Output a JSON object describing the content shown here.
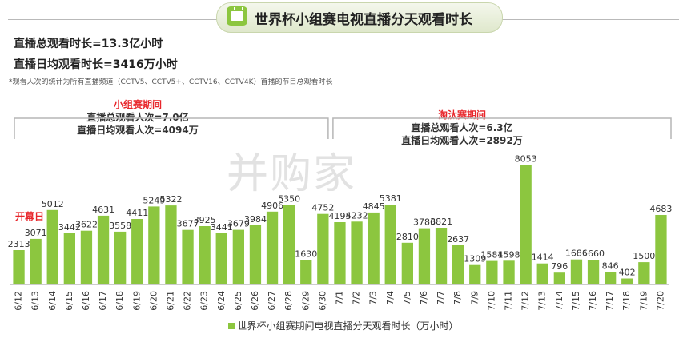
{
  "header": {
    "title": "世界杯小组赛电视直播分天观看时长",
    "icon": "tv-icon",
    "accent": "#8cc63f"
  },
  "summary": {
    "line1": "直播总观看时长=13.3亿小时",
    "line2": "直播日均观看时长=3416万小时",
    "note": "*观看人次的统计为所有直播频道（CCTV5、CCTV5+、CCTV16、CCTV4K）首播的节目总观看时长"
  },
  "periods": {
    "group": {
      "title": "小组赛期间",
      "line1": "直播总观看人次=7.0亿",
      "line2": "直播日均观看人次=4094万"
    },
    "knockout": {
      "title": "淘汰赛期间",
      "line1": "直播总观看人次=6.3亿",
      "line2": "直播日均观看人次=2892万"
    }
  },
  "annotation": {
    "opening": "开幕日"
  },
  "watermark": "并购家",
  "chart_data": {
    "type": "bar",
    "categories": [
      "6/12",
      "6/13",
      "6/14",
      "6/15",
      "6/16",
      "6/17",
      "6/18",
      "6/19",
      "6/20",
      "6/21",
      "6/22",
      "6/23",
      "6/24",
      "6/25",
      "6/26",
      "6/27",
      "6/28",
      "6/29",
      "6/30",
      "7/1",
      "7/2",
      "7/3",
      "7/4",
      "7/5",
      "7/6",
      "7/7",
      "7/8",
      "7/9",
      "7/10",
      "7/11",
      "7/12",
      "7/13",
      "7/14",
      "7/15",
      "7/16",
      "7/17",
      "7/18",
      "7/19",
      "7/20"
    ],
    "series": [
      {
        "name": "世界杯小组赛期间电视直播分天观看时长（万小时）",
        "values": [
          2313,
          3071,
          5012,
          3442,
          3622,
          4631,
          3558,
          4411,
          5249,
          5322,
          3677,
          3925,
          3441,
          3679,
          3984,
          4906,
          5350,
          1630,
          4752,
          4195,
          4232,
          4845,
          5381,
          2810,
          3786,
          3821,
          2637,
          1309,
          1584,
          1598,
          8053,
          1414,
          796,
          1686,
          1660,
          846,
          402,
          1500,
          4683
        ]
      }
    ],
    "color": "#8cc63f",
    "ylim": [
      0,
      8500
    ],
    "grid": false,
    "legend": "bottom"
  }
}
